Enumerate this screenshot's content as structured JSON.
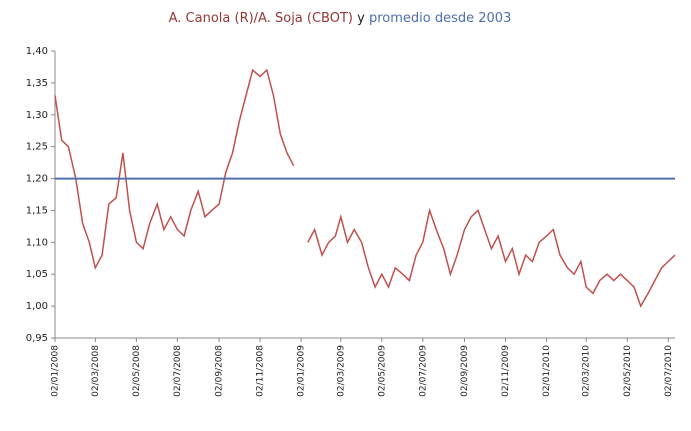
{
  "chart_data": {
    "type": "line",
    "title_connector": "y",
    "x": [
      "02/01/2008",
      "12/01/2008",
      "22/01/2008",
      "02/02/2008",
      "12/02/2008",
      "22/02/2008",
      "02/03/2008",
      "12/03/2008",
      "22/03/2008",
      "02/04/2008",
      "12/04/2008",
      "22/04/2008",
      "02/05/2008",
      "12/05/2008",
      "22/05/2008",
      "02/06/2008",
      "12/06/2008",
      "22/06/2008",
      "02/07/2008",
      "12/07/2008",
      "22/07/2008",
      "02/08/2008",
      "12/08/2008",
      "22/08/2008",
      "02/09/2008",
      "12/09/2008",
      "22/09/2008",
      "02/10/2008",
      "12/10/2008",
      "22/10/2008",
      "02/11/2008",
      "12/11/2008",
      "22/11/2008",
      "02/12/2008",
      "12/12/2008",
      "22/12/2008",
      "02/01/2009",
      "12/01/2009",
      "22/01/2009",
      "02/02/2009",
      "12/02/2009",
      "22/02/2009",
      "02/03/2009",
      "12/03/2009",
      "22/03/2009",
      "02/04/2009",
      "12/04/2009",
      "22/04/2009",
      "02/05/2009",
      "12/05/2009",
      "22/05/2009",
      "02/06/2009",
      "12/06/2009",
      "22/06/2009",
      "02/07/2009",
      "12/07/2009",
      "22/07/2009",
      "02/08/2009",
      "12/08/2009",
      "22/08/2009",
      "02/09/2009",
      "12/09/2009",
      "22/09/2009",
      "02/10/2009",
      "12/10/2009",
      "22/10/2009",
      "02/11/2009",
      "12/11/2009",
      "22/11/2009",
      "02/12/2009",
      "12/12/2009",
      "22/12/2009",
      "02/01/2010",
      "12/01/2010",
      "22/01/2010",
      "02/02/2010",
      "12/02/2010",
      "22/02/2010",
      "02/03/2010",
      "12/03/2010",
      "22/03/2010",
      "02/04/2010",
      "12/04/2010",
      "22/04/2010",
      "02/05/2010",
      "12/05/2010",
      "22/05/2010",
      "02/06/2010",
      "12/06/2010",
      "22/06/2010",
      "02/07/2010",
      "12/07/2010"
    ],
    "series": [
      {
        "name": "A. Canola (R)/A. Soja (CBOT)",
        "color": "#c0504d",
        "values": [
          1.33,
          1.26,
          1.25,
          1.2,
          1.13,
          1.1,
          1.06,
          1.08,
          1.16,
          1.17,
          1.24,
          1.15,
          1.1,
          1.09,
          1.13,
          1.16,
          1.12,
          1.14,
          1.12,
          1.11,
          1.15,
          1.18,
          1.14,
          1.15,
          1.16,
          1.21,
          1.24,
          1.29,
          1.33,
          1.37,
          1.36,
          1.37,
          1.33,
          1.27,
          1.24,
          1.22,
          null,
          1.1,
          1.12,
          1.08,
          1.1,
          1.11,
          1.14,
          1.1,
          1.12,
          1.1,
          1.06,
          1.03,
          1.05,
          1.03,
          1.06,
          1.05,
          1.04,
          1.08,
          1.1,
          1.15,
          1.12,
          1.09,
          1.05,
          1.08,
          1.12,
          1.14,
          1.15,
          1.12,
          1.09,
          1.11,
          1.07,
          1.09,
          1.05,
          1.08,
          1.07,
          1.1,
          1.11,
          1.12,
          1.08,
          1.06,
          1.05,
          1.07,
          1.03,
          1.02,
          1.04,
          1.05,
          1.04,
          1.05,
          1.04,
          1.03,
          1.0,
          1.02,
          1.04,
          1.06,
          1.07,
          1.08
        ]
      },
      {
        "name": "promedio desde 2003",
        "color": "#4f6fae",
        "x": [
          "02/01/2008",
          "12/07/2010"
        ],
        "values": [
          1.2,
          1.2
        ]
      }
    ],
    "xlim": [
      "02/01/2008",
      "12/07/2010"
    ],
    "xticks": [
      "02/01/2008",
      "02/03/2008",
      "02/05/2008",
      "02/07/2008",
      "02/09/2008",
      "02/11/2008",
      "02/01/2009",
      "02/03/2009",
      "02/05/2009",
      "02/07/2009",
      "02/09/2009",
      "02/11/2009",
      "02/01/2010",
      "02/03/2010",
      "02/05/2010",
      "02/07/2010"
    ],
    "ylim": [
      0.95,
      1.4
    ],
    "yticks": [
      {
        "value": 0.95,
        "label": "0,95"
      },
      {
        "value": 1.0,
        "label": "1,00"
      },
      {
        "value": 1.05,
        "label": "1,05"
      },
      {
        "value": 1.1,
        "label": "1,10"
      },
      {
        "value": 1.15,
        "label": "1,15"
      },
      {
        "value": 1.2,
        "label": "1,20"
      },
      {
        "value": 1.25,
        "label": "1,25"
      },
      {
        "value": 1.3,
        "label": "1,30"
      },
      {
        "value": 1.35,
        "label": "1,35"
      },
      {
        "value": 1.4,
        "label": "1,40"
      }
    ],
    "grid": false
  }
}
